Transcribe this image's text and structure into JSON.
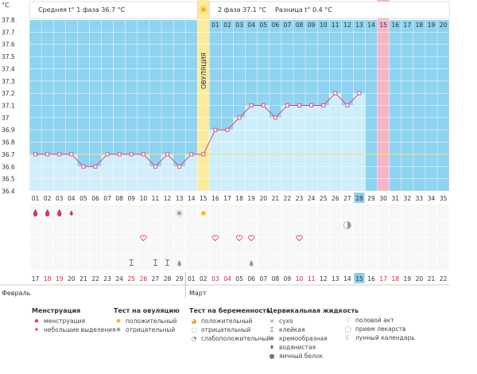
{
  "header": {
    "unit": "°C",
    "phase1_text": "Средняя t° 1 фаза 36.7 °C",
    "phase2_text": "2 фаза 37.1 °C",
    "diff_text": "Разница t° 0.4 °C",
    "ovulation_label": "ОВУЛЯЦИЯ"
  },
  "chart_data": {
    "type": "line",
    "ylim": [
      36.4,
      37.8
    ],
    "yticks": [
      "37.8",
      "37.7",
      "37.6",
      "37.5",
      "37.4",
      "37.3",
      "37.2",
      "37.1",
      "37",
      "36.9",
      "36.8",
      "36.7",
      "36.6",
      "36.5",
      "36.4"
    ],
    "cycle_days": [
      "01",
      "02",
      "03",
      "04",
      "05",
      "06",
      "07",
      "08",
      "09",
      "10",
      "11",
      "12",
      "13",
      "14",
      "15",
      "16",
      "17",
      "18",
      "19",
      "20",
      "21",
      "22",
      "23",
      "24",
      "25",
      "26",
      "27",
      "28",
      "29",
      "30",
      "31",
      "32",
      "33",
      "34",
      "35"
    ],
    "cycle_days_top": [
      "01",
      "02",
      "03",
      "04",
      "05",
      "06",
      "07",
      "08",
      "09",
      "10",
      "11",
      "12",
      "13",
      "14",
      "15",
      "16",
      "17",
      "18",
      "19",
      "20"
    ],
    "temperatures": [
      36.7,
      36.7,
      36.7,
      36.7,
      36.6,
      36.6,
      36.7,
      36.7,
      36.7,
      36.7,
      36.6,
      36.7,
      36.6,
      36.7,
      36.7,
      36.9,
      36.9,
      37.0,
      37.1,
      37.1,
      37.0,
      37.1,
      37.1,
      37.1,
      37.1,
      37.2,
      37.1,
      37.2
    ],
    "coverline": 36.7,
    "ovulation_day": 15,
    "today_day": 28,
    "expected_period_day": 30
  },
  "calendar": {
    "dates": [
      "17",
      "18",
      "19",
      "20",
      "21",
      "22",
      "23",
      "24",
      "25",
      "26",
      "27",
      "28",
      "29",
      "01",
      "02",
      "03",
      "04",
      "05",
      "06",
      "07",
      "08",
      "09",
      "10",
      "11",
      "12",
      "13",
      "14",
      "15",
      "16",
      "17",
      "18",
      "19",
      "20",
      "21",
      "22"
    ],
    "red_indices": [
      1,
      2,
      8,
      9,
      15,
      16,
      22,
      23,
      29,
      30
    ],
    "today_index": 27,
    "month_feb": "Февраль",
    "month_mar": "Март"
  },
  "colors": {
    "phase1_fill": "#8ed3ef",
    "phase2_fill": "#cdeefb",
    "ovulation": "#fbeb9e",
    "expected_period": "#f4b6c8",
    "line": "#d84a75",
    "coverline": "#f0e37a",
    "today": "#8ccde8"
  },
  "markers": {
    "menses_days": [
      1,
      2,
      3
    ],
    "light_bleeding_days": [
      4
    ],
    "ovulation_negative_days": [
      13
    ],
    "ovulation_positive_days": [
      15
    ],
    "pregnancy_weak_days": [
      27
    ],
    "intercourse_days": [
      10,
      16,
      18,
      19,
      23
    ],
    "sticky_days": [
      9,
      11,
      12
    ],
    "eggwhite_days": [
      13,
      19
    ]
  },
  "legend": {
    "menstruation_title": "Менструация",
    "menstruation_items": [
      "менструация",
      "небольшие выделения"
    ],
    "ovulation_test_title": "Тест на овуляцию",
    "ovulation_test_items": [
      "положительный",
      "отрицательный"
    ],
    "pregnancy_test_title": "Тест на беременность",
    "pregnancy_test_items": [
      "положительный",
      "отрицательный",
      "слабоположительный"
    ],
    "cervical_title": "Цервикальная жидкость",
    "cervical_items": [
      "сухо",
      "клейкая",
      "кремообразная",
      "водянистая",
      "яичный белок"
    ],
    "other_items": [
      "половой акт",
      "прием лекарств",
      "лунный календарь"
    ]
  }
}
